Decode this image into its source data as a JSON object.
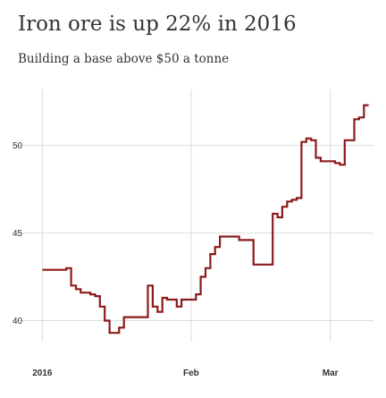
{
  "header": {
    "title": "Iron ore is up 22% in 2016",
    "subtitle": "Building a base above $50 a tonne"
  },
  "colors": {
    "line": "#8b1a1a",
    "grid": "#dddddd",
    "text": "#333333"
  },
  "chart_data": {
    "type": "line",
    "title": "Iron ore is up 22% in 2016",
    "subtitle": "Building a base above $50 a tonne",
    "xlabel": "",
    "ylabel": "",
    "step": true,
    "grid": true,
    "xlim": [
      "2015-12-31",
      "2016-03-10"
    ],
    "ylim": [
      38.8,
      53.2
    ],
    "y_ticks": [
      40,
      45,
      50
    ],
    "x_ticks": [
      {
        "date": "2016-01-01",
        "label": "2016"
      },
      {
        "date": "2016-02-01",
        "label": "Feb"
      },
      {
        "date": "2016-03-01",
        "label": "Mar"
      }
    ],
    "series": [
      {
        "x": [
          "2016-01-01",
          "2016-01-06",
          "2016-01-07",
          "2016-01-08",
          "2016-01-09",
          "2016-01-11",
          "2016-01-12",
          "2016-01-13",
          "2016-01-14",
          "2016-01-15",
          "2016-01-17",
          "2016-01-18",
          "2016-01-19",
          "2016-01-20",
          "2016-01-23",
          "2016-01-24",
          "2016-01-25",
          "2016-01-26",
          "2016-01-27",
          "2016-01-29",
          "2016-01-30",
          "2016-02-02",
          "2016-02-03",
          "2016-02-04",
          "2016-02-05",
          "2016-02-06",
          "2016-02-07",
          "2016-02-08",
          "2016-02-11",
          "2016-02-14",
          "2016-02-18",
          "2016-02-19",
          "2016-02-20",
          "2016-02-21",
          "2016-02-22",
          "2016-02-23",
          "2016-02-24",
          "2016-02-25",
          "2016-02-26",
          "2016-02-27",
          "2016-02-28",
          "2016-03-02",
          "2016-03-03",
          "2016-03-04",
          "2016-03-06",
          "2016-03-07",
          "2016-03-08"
        ],
        "values": [
          42.9,
          43.0,
          42.0,
          41.8,
          41.6,
          41.5,
          41.4,
          40.8,
          40.0,
          39.3,
          39.6,
          40.2,
          40.2,
          40.2,
          42.0,
          40.8,
          40.5,
          41.3,
          41.2,
          40.8,
          41.2,
          41.5,
          42.5,
          43.0,
          43.8,
          44.2,
          44.8,
          44.8,
          44.6,
          43.2,
          46.1,
          45.9,
          46.5,
          46.8,
          46.9,
          47.0,
          50.2,
          50.4,
          50.3,
          49.3,
          49.1,
          49.0,
          48.9,
          50.3,
          51.5,
          51.6,
          52.3
        ]
      }
    ]
  }
}
